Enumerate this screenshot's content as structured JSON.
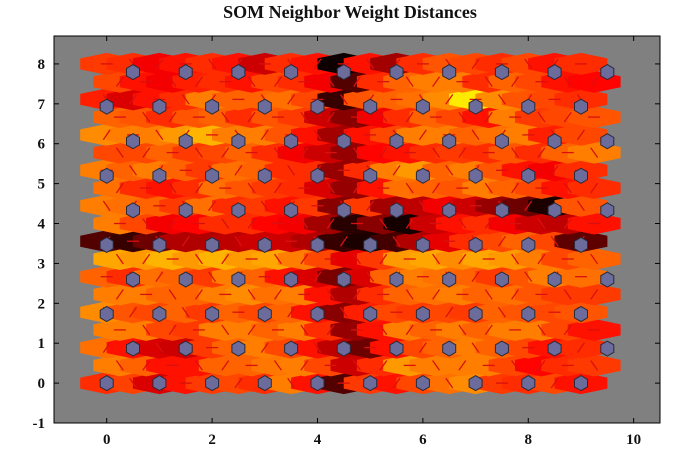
{
  "chart_data": {
    "type": "heatmap",
    "subtype": "som-neighbor-distances-hex",
    "title": "SOM Neighbor Weight Distances",
    "xlabel": "",
    "ylabel": "",
    "xlim": [
      -1,
      10.5
    ],
    "ylim": [
      -1,
      8.7
    ],
    "xticks": [
      0,
      2,
      4,
      6,
      8,
      10
    ],
    "yticks": [
      -1,
      0,
      1,
      2,
      3,
      4,
      5,
      6,
      7,
      8
    ],
    "grid": false,
    "grid_size": [
      10,
      10
    ],
    "plot_background": "#808080",
    "neuron_color": "#6b6b9c",
    "colormap": "hot",
    "lanes": {
      "note": "neighbor-distance intensity per hex-lattice lane; lane row r spans y from 0 to 8 in steps of ~0.433; 0 = black (far), 1 = pale yellow (near)",
      "rows": [
        [
          0.44,
          0.47,
          0.32,
          0.4,
          0.46,
          0.48,
          0.44,
          0.56,
          0.4,
          0.12,
          0.46,
          0.4,
          0.48,
          0.54,
          0.58,
          0.46,
          0.44,
          0.48,
          0.4
        ],
        [
          0.56,
          0.52,
          0.4,
          0.4,
          0.52,
          0.52,
          0.55,
          0.56,
          0.48,
          0.3,
          0.44,
          0.6,
          0.56,
          0.56,
          0.56,
          0.48,
          0.38,
          0.44,
          0.46
        ],
        [
          0.54,
          0.4,
          0.32,
          0.3,
          0.46,
          0.52,
          0.56,
          0.48,
          0.4,
          0.28,
          0.16,
          0.4,
          0.48,
          0.52,
          0.56,
          0.52,
          0.48,
          0.4,
          0.44
        ],
        [
          0.56,
          0.56,
          0.48,
          0.46,
          0.56,
          0.56,
          0.52,
          0.56,
          0.44,
          0.22,
          0.4,
          0.56,
          0.52,
          0.56,
          0.52,
          0.56,
          0.56,
          0.48,
          0.4
        ],
        [
          0.58,
          0.5,
          0.48,
          0.52,
          0.46,
          0.52,
          0.48,
          0.52,
          0.4,
          0.2,
          0.42,
          0.48,
          0.46,
          0.48,
          0.46,
          0.52,
          0.5,
          0.48,
          0.5
        ],
        [
          0.56,
          0.56,
          0.52,
          0.52,
          0.56,
          0.58,
          0.54,
          0.56,
          0.4,
          0.26,
          0.44,
          0.52,
          0.54,
          0.56,
          0.52,
          0.54,
          0.5,
          0.46,
          0.46
        ],
        [
          0.52,
          0.44,
          0.54,
          0.52,
          0.46,
          0.56,
          0.52,
          0.4,
          0.32,
          0.18,
          0.32,
          0.52,
          0.56,
          0.54,
          0.52,
          0.46,
          0.5,
          0.56,
          0.54
        ],
        [
          0.62,
          0.6,
          0.64,
          0.6,
          0.64,
          0.6,
          0.62,
          0.56,
          0.48,
          0.34,
          0.46,
          0.6,
          0.62,
          0.58,
          0.62,
          0.6,
          0.56,
          0.48,
          0.52
        ],
        [
          0.12,
          0.08,
          0.16,
          0.26,
          0.26,
          0.28,
          0.3,
          0.3,
          0.26,
          0.08,
          0.04,
          0.1,
          0.26,
          0.34,
          0.44,
          0.48,
          0.52,
          0.48,
          0.14
        ],
        [
          0.56,
          0.48,
          0.36,
          0.38,
          0.44,
          0.44,
          0.38,
          0.36,
          0.24,
          0.06,
          0.2,
          0.03,
          0.3,
          0.4,
          0.44,
          0.36,
          0.3,
          0.28,
          0.4
        ],
        [
          0.56,
          0.54,
          0.52,
          0.46,
          0.54,
          0.44,
          0.46,
          0.4,
          0.46,
          0.2,
          0.46,
          0.24,
          0.28,
          0.36,
          0.3,
          0.22,
          0.16,
          0.04,
          0.5
        ],
        [
          0.54,
          0.44,
          0.4,
          0.44,
          0.54,
          0.5,
          0.46,
          0.44,
          0.32,
          0.22,
          0.4,
          0.54,
          0.52,
          0.5,
          0.56,
          0.52,
          0.48,
          0.4,
          0.44
        ],
        [
          0.56,
          0.52,
          0.56,
          0.52,
          0.46,
          0.54,
          0.52,
          0.44,
          0.44,
          0.22,
          0.44,
          0.56,
          0.6,
          0.52,
          0.56,
          0.5,
          0.4,
          0.36,
          0.44
        ],
        [
          0.48,
          0.48,
          0.52,
          0.46,
          0.48,
          0.52,
          0.44,
          0.36,
          0.3,
          0.22,
          0.38,
          0.4,
          0.44,
          0.46,
          0.44,
          0.5,
          0.44,
          0.52,
          0.56
        ],
        [
          0.58,
          0.56,
          0.56,
          0.6,
          0.64,
          0.56,
          0.56,
          0.5,
          0.4,
          0.24,
          0.4,
          0.48,
          0.56,
          0.56,
          0.52,
          0.54,
          0.56,
          0.42,
          0.48
        ],
        [
          0.52,
          0.5,
          0.44,
          0.5,
          0.52,
          0.44,
          0.5,
          0.46,
          0.3,
          0.2,
          0.36,
          0.44,
          0.52,
          0.48,
          0.4,
          0.56,
          0.46,
          0.48,
          0.5
        ],
        [
          0.42,
          0.32,
          0.4,
          0.44,
          0.56,
          0.52,
          0.52,
          0.54,
          0.48,
          0.08,
          0.5,
          0.52,
          0.54,
          0.58,
          0.72,
          0.58,
          0.5,
          0.48,
          0.44
        ],
        [
          0.48,
          0.4,
          0.36,
          0.42,
          0.44,
          0.4,
          0.48,
          0.44,
          0.36,
          0.12,
          0.44,
          0.52,
          0.56,
          0.56,
          0.44,
          0.52,
          0.48,
          0.4,
          0.38
        ],
        [
          0.46,
          0.44,
          0.36,
          0.4,
          0.44,
          0.4,
          0.3,
          0.44,
          0.4,
          0.02,
          0.4,
          0.24,
          0.44,
          0.5,
          0.48,
          0.44,
          0.48,
          0.4,
          0.44
        ]
      ]
    }
  }
}
